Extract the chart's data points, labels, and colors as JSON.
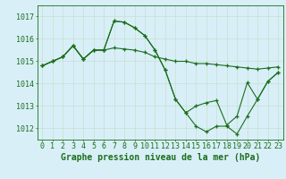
{
  "background_color": "#d8eff8",
  "grid_color": "#c8dfd0",
  "line_color": "#1a6e1a",
  "xlabel": "Graphe pression niveau de la mer (hPa)",
  "xlabel_fontsize": 7,
  "tick_fontsize": 6,
  "ylim": [
    1011.5,
    1017.5
  ],
  "xlim": [
    -0.5,
    23.5
  ],
  "yticks": [
    1012,
    1013,
    1014,
    1015,
    1016,
    1017
  ],
  "xticks": [
    0,
    1,
    2,
    3,
    4,
    5,
    6,
    7,
    8,
    9,
    10,
    11,
    12,
    13,
    14,
    15,
    16,
    17,
    18,
    19,
    20,
    21,
    22,
    23
  ],
  "series1": [
    1014.8,
    1015.0,
    1015.2,
    1015.7,
    1015.1,
    1015.5,
    1015.5,
    1015.6,
    1015.55,
    1015.5,
    1015.4,
    1015.2,
    1015.1,
    1015.0,
    1015.0,
    1014.9,
    1014.9,
    1014.85,
    1014.8,
    1014.75,
    1014.7,
    1014.65,
    1014.7,
    1014.75
  ],
  "series2": [
    1014.8,
    1015.0,
    1015.2,
    1015.7,
    1015.1,
    1015.5,
    1015.5,
    1016.8,
    1016.75,
    1016.5,
    1016.15,
    1015.5,
    1014.6,
    1013.3,
    1012.7,
    1013.0,
    1013.15,
    1013.25,
    1012.15,
    1012.55,
    1014.05,
    1013.3,
    1014.1,
    1014.5
  ],
  "series3": [
    1014.8,
    1015.0,
    1015.2,
    1015.7,
    1015.1,
    1015.5,
    1015.5,
    1016.8,
    1016.75,
    1016.5,
    1016.15,
    1015.5,
    1014.6,
    1013.3,
    1012.7,
    1012.1,
    1011.85,
    1012.1,
    1012.1,
    1011.75,
    1012.55,
    1013.3,
    1014.1,
    1014.5
  ]
}
